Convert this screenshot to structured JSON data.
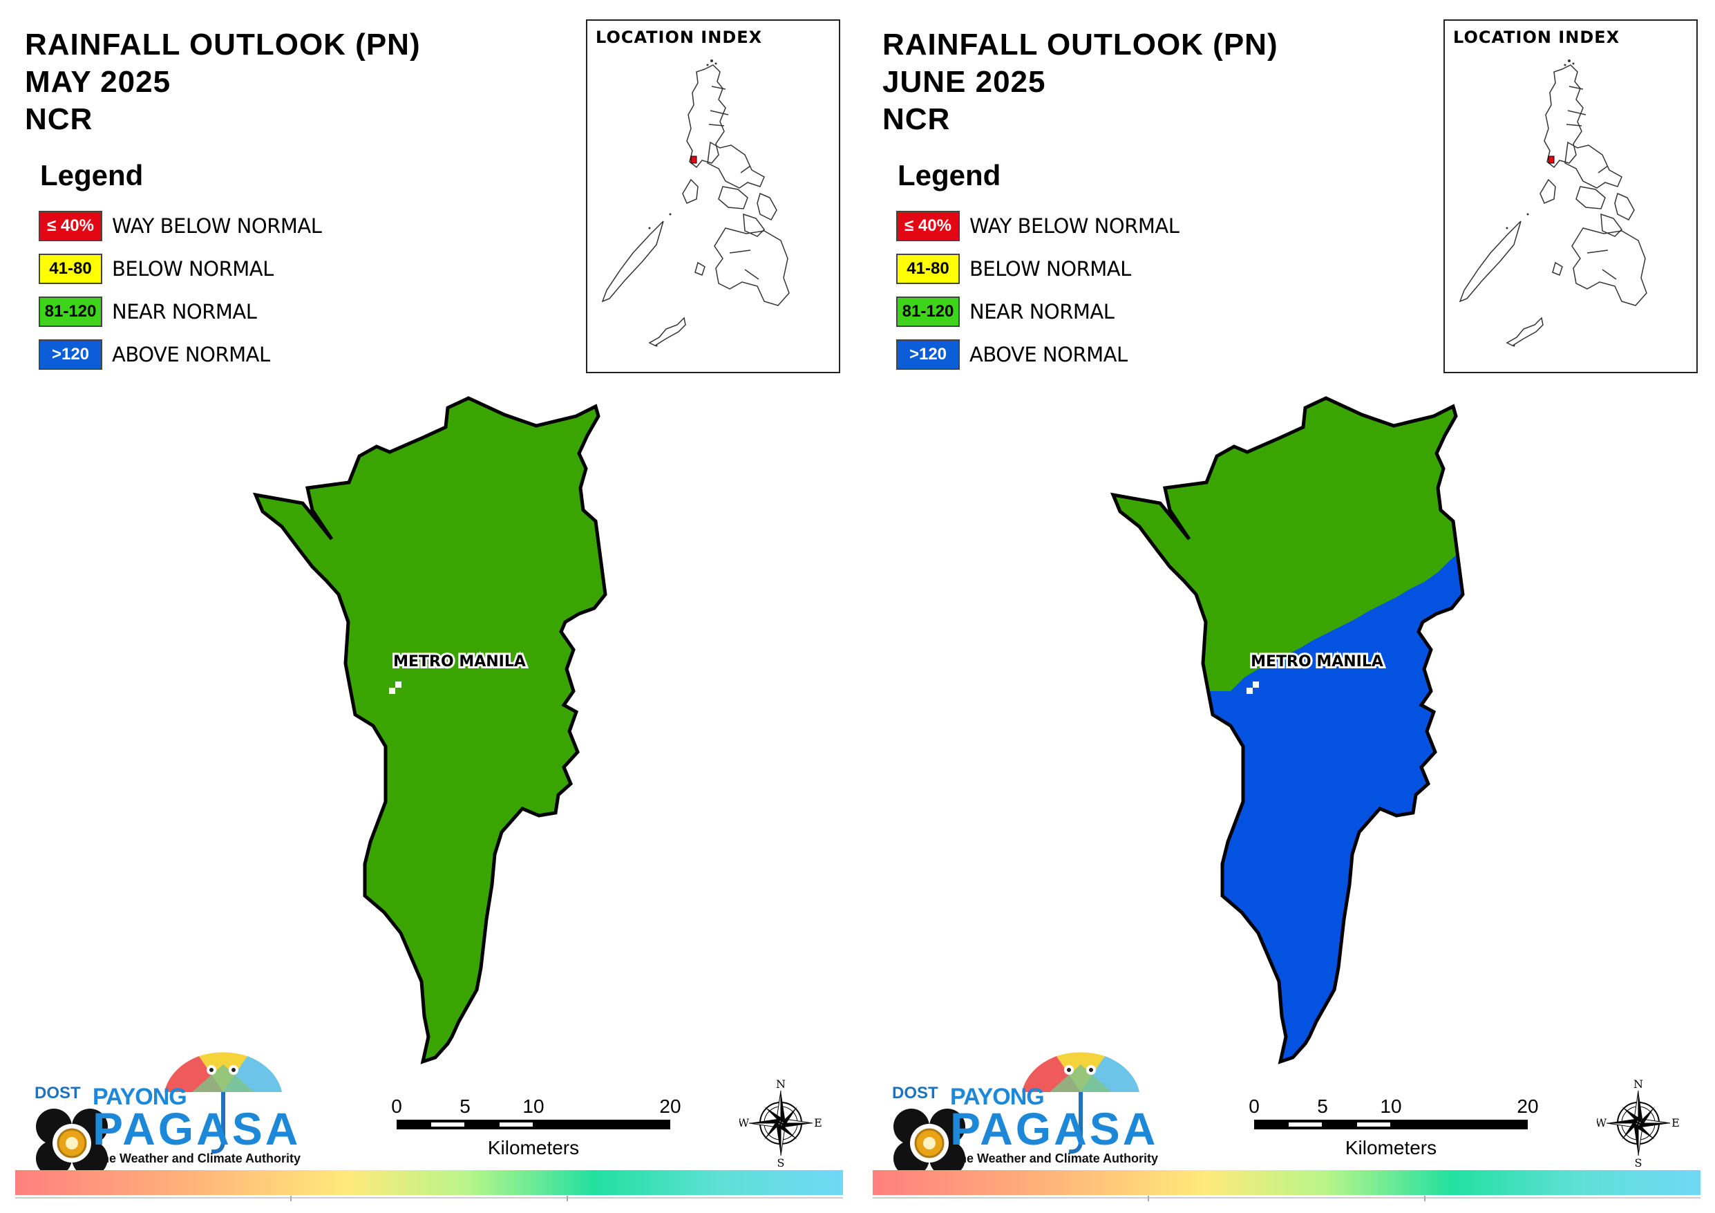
{
  "panels": [
    {
      "title_line1": "RAINFALL OUTLOOK (PN)",
      "title_line2": "MAY 2025",
      "title_line3": "NCR",
      "region_label": "METRO MANILA",
      "fill_upper": "#3aa500",
      "fill_lower": "#3aa500"
    },
    {
      "title_line1": "RAINFALL OUTLOOK (PN)",
      "title_line2": "JUNE 2025",
      "title_line3": "NCR",
      "region_label": "METRO MANILA",
      "fill_upper": "#3aa500",
      "fill_lower": "#0452e0"
    }
  ],
  "legend": {
    "heading": "Legend",
    "items": [
      {
        "swatch": "≤ 40%",
        "label": "WAY BELOW NORMAL",
        "color": "#e30613"
      },
      {
        "swatch": "41-80",
        "label": "BELOW NORMAL",
        "color": "#ffff00"
      },
      {
        "swatch": "81-120",
        "label": "NEAR NORMAL",
        "color": "#3dd41a"
      },
      {
        "swatch": ">120",
        "label": "ABOVE NORMAL",
        "color": "#0b5ed7"
      }
    ]
  },
  "inset": {
    "title": "LOCATION INDEX"
  },
  "scale": {
    "ticks": [
      "0",
      "5",
      "10",
      "20"
    ],
    "unit": "Kilometers"
  },
  "compass": {
    "n": "N",
    "s": "S",
    "e": "E",
    "w": "W"
  },
  "logo": {
    "dost": "DOST",
    "payong": "PAYONG",
    "pagasa": "PAGASA",
    "tagline": "The Weather and Climate Authority"
  }
}
